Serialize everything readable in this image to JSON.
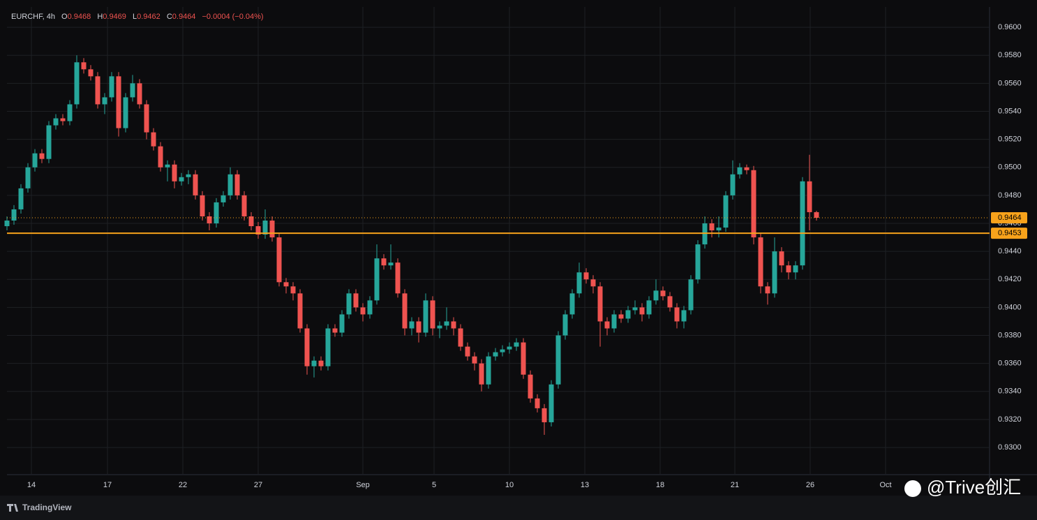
{
  "header": {
    "symbol": "EURCHF, 4h",
    "open_label": "O",
    "open": "0.9468",
    "high_label": "H",
    "high": "0.9469",
    "low_label": "L",
    "low": "0.9462",
    "close_label": "C",
    "close": "0.9464",
    "change": "−0.0004 (−0.04%)"
  },
  "chart_data": {
    "type": "candlestick",
    "up_color": "#26a69a",
    "down_color": "#ef5350",
    "grid": true,
    "open": [
      0.9458,
      0.9462,
      0.947,
      0.9485,
      0.95,
      0.951,
      0.9506,
      0.953,
      0.9535,
      0.9533,
      0.9545,
      0.9575,
      0.957,
      0.9565,
      0.9545,
      0.955,
      0.9565,
      0.9528,
      0.955,
      0.956,
      0.9545,
      0.9525,
      0.9515,
      0.95,
      0.9502,
      0.949,
      0.9493,
      0.9495,
      0.948,
      0.9465,
      0.946,
      0.9475,
      0.948,
      0.9495,
      0.948,
      0.9465,
      0.9458,
      0.9452,
      0.9462,
      0.945,
      0.9418,
      0.9415,
      0.941,
      0.9385,
      0.9358,
      0.9362,
      0.9358,
      0.9385,
      0.9382,
      0.9395,
      0.941,
      0.94,
      0.9395,
      0.9405,
      0.9435,
      0.943,
      0.9432,
      0.941,
      0.9385,
      0.939,
      0.9382,
      0.9405,
      0.9385,
      0.9387,
      0.939,
      0.9385,
      0.9372,
      0.9365,
      0.936,
      0.9345,
      0.9365,
      0.9368,
      0.937,
      0.9372,
      0.9375,
      0.9352,
      0.9335,
      0.9328,
      0.9318,
      0.9345,
      0.938,
      0.9395,
      0.941,
      0.9425,
      0.942,
      0.9415,
      0.939,
      0.9385,
      0.9395,
      0.9392,
      0.9398,
      0.94,
      0.9395,
      0.9405,
      0.9412,
      0.9408,
      0.94,
      0.939,
      0.9398,
      0.942,
      0.9445,
      0.946,
      0.9455,
      0.9457,
      0.948,
      0.9495,
      0.95,
      0.9498,
      0.945,
      0.9415,
      0.941,
      0.944,
      0.943,
      0.9425,
      0.943,
      0.949,
      0.9468
    ],
    "high": [
      0.9465,
      0.9473,
      0.9488,
      0.9503,
      0.9513,
      0.9513,
      0.9533,
      0.9538,
      0.9538,
      0.9548,
      0.958,
      0.9578,
      0.9573,
      0.9568,
      0.9553,
      0.9568,
      0.9568,
      0.9553,
      0.9566,
      0.9563,
      0.9548,
      0.9528,
      0.9518,
      0.9505,
      0.9505,
      0.9496,
      0.9498,
      0.9498,
      0.9483,
      0.9468,
      0.9478,
      0.9483,
      0.95,
      0.9498,
      0.9483,
      0.9468,
      0.9461,
      0.947,
      0.9465,
      0.9453,
      0.9421,
      0.9418,
      0.9413,
      0.9388,
      0.9365,
      0.9365,
      0.9388,
      0.9388,
      0.9398,
      0.9413,
      0.9413,
      0.9403,
      0.9408,
      0.9445,
      0.9438,
      0.9445,
      0.9435,
      0.9413,
      0.9393,
      0.9393,
      0.941,
      0.9408,
      0.939,
      0.94,
      0.9393,
      0.9388,
      0.9375,
      0.9368,
      0.9363,
      0.9368,
      0.9371,
      0.9373,
      0.9375,
      0.9378,
      0.9378,
      0.9355,
      0.9338,
      0.9331,
      0.9348,
      0.9383,
      0.9398,
      0.9413,
      0.9432,
      0.9428,
      0.9423,
      0.9418,
      0.9393,
      0.9398,
      0.9398,
      0.9401,
      0.9405,
      0.9403,
      0.9408,
      0.942,
      0.9415,
      0.9411,
      0.9403,
      0.9401,
      0.9423,
      0.9448,
      0.9465,
      0.9463,
      0.9465,
      0.9483,
      0.9505,
      0.9503,
      0.9502,
      0.9501,
      0.9453,
      0.9418,
      0.945,
      0.9443,
      0.9433,
      0.9433,
      0.9493,
      0.9509,
      0.9469
    ],
    "low": [
      0.9455,
      0.9459,
      0.9467,
      0.9482,
      0.9497,
      0.9503,
      0.9503,
      0.9527,
      0.953,
      0.953,
      0.9542,
      0.9567,
      0.9562,
      0.9542,
      0.9538,
      0.9547,
      0.9522,
      0.9525,
      0.9547,
      0.9542,
      0.952,
      0.9512,
      0.9497,
      0.949,
      0.9485,
      0.9487,
      0.9488,
      0.9477,
      0.9462,
      0.9455,
      0.9457,
      0.9472,
      0.9477,
      0.9477,
      0.9462,
      0.9455,
      0.9449,
      0.9449,
      0.9447,
      0.9415,
      0.941,
      0.9405,
      0.9382,
      0.9352,
      0.935,
      0.9355,
      0.9355,
      0.9379,
      0.9379,
      0.9392,
      0.9397,
      0.939,
      0.9392,
      0.9402,
      0.9427,
      0.9427,
      0.9407,
      0.938,
      0.938,
      0.9375,
      0.9379,
      0.938,
      0.9378,
      0.9384,
      0.938,
      0.9369,
      0.9362,
      0.9355,
      0.934,
      0.9342,
      0.9362,
      0.9365,
      0.9367,
      0.9369,
      0.9349,
      0.9332,
      0.9325,
      0.9309,
      0.9315,
      0.9342,
      0.9377,
      0.9392,
      0.9407,
      0.9417,
      0.941,
      0.9372,
      0.938,
      0.9382,
      0.9389,
      0.9389,
      0.9395,
      0.939,
      0.9392,
      0.9402,
      0.9405,
      0.9397,
      0.9385,
      0.9385,
      0.9395,
      0.9417,
      0.9442,
      0.945,
      0.945,
      0.9454,
      0.9477,
      0.9492,
      0.9495,
      0.9445,
      0.941,
      0.9402,
      0.9407,
      0.9425,
      0.942,
      0.942,
      0.9427,
      0.9455,
      0.9462
    ],
    "close": [
      0.9462,
      0.947,
      0.9485,
      0.95,
      0.951,
      0.9506,
      0.953,
      0.9535,
      0.9533,
      0.9545,
      0.9575,
      0.957,
      0.9565,
      0.9545,
      0.955,
      0.9565,
      0.9528,
      0.955,
      0.956,
      0.9545,
      0.9525,
      0.9515,
      0.95,
      0.9502,
      0.949,
      0.9493,
      0.9495,
      0.948,
      0.9465,
      0.946,
      0.9475,
      0.948,
      0.9495,
      0.948,
      0.9465,
      0.9458,
      0.9452,
      0.9462,
      0.945,
      0.9418,
      0.9415,
      0.941,
      0.9385,
      0.9358,
      0.9362,
      0.9358,
      0.9385,
      0.9382,
      0.9395,
      0.941,
      0.94,
      0.9395,
      0.9405,
      0.9435,
      0.943,
      0.9432,
      0.941,
      0.9385,
      0.939,
      0.9382,
      0.9405,
      0.9385,
      0.9387,
      0.939,
      0.9385,
      0.9372,
      0.9365,
      0.936,
      0.9345,
      0.9365,
      0.9368,
      0.937,
      0.9372,
      0.9375,
      0.9352,
      0.9335,
      0.9328,
      0.9318,
      0.9345,
      0.938,
      0.9395,
      0.941,
      0.9425,
      0.942,
      0.9415,
      0.939,
      0.9385,
      0.9395,
      0.9392,
      0.9398,
      0.94,
      0.9395,
      0.9405,
      0.9412,
      0.9408,
      0.94,
      0.939,
      0.9398,
      0.942,
      0.9445,
      0.946,
      0.9455,
      0.9457,
      0.948,
      0.9495,
      0.95,
      0.9498,
      0.945,
      0.9415,
      0.941,
      0.944,
      0.943,
      0.9425,
      0.943,
      0.949,
      0.9468,
      0.9464
    ],
    "ylim": [
      0.92806,
      0.96145
    ],
    "yticks": [
      {
        "value": 0.93,
        "label": "0.9300"
      },
      {
        "value": 0.932,
        "label": "0.9320"
      },
      {
        "value": 0.934,
        "label": "0.9340"
      },
      {
        "value": 0.936,
        "label": "0.9360"
      },
      {
        "value": 0.938,
        "label": "0.9380"
      },
      {
        "value": 0.94,
        "label": "0.9400"
      },
      {
        "value": 0.942,
        "label": "0.9420"
      },
      {
        "value": 0.944,
        "label": "0.9440"
      },
      {
        "value": 0.946,
        "label": "0.9460"
      },
      {
        "value": 0.948,
        "label": "0.9480"
      },
      {
        "value": 0.95,
        "label": "0.9500"
      },
      {
        "value": 0.952,
        "label": "0.9520"
      },
      {
        "value": 0.954,
        "label": "0.9540"
      },
      {
        "value": 0.956,
        "label": "0.9560"
      },
      {
        "value": 0.958,
        "label": "0.9580"
      },
      {
        "value": 0.96,
        "label": "0.9600"
      }
    ],
    "xlim": [
      0,
      140.8
    ],
    "xticks": [
      {
        "value": 3.5,
        "label": "14"
      },
      {
        "value": 14.4,
        "label": "17"
      },
      {
        "value": 25.2,
        "label": "22"
      },
      {
        "value": 36,
        "label": "27"
      },
      {
        "value": 51,
        "label": "Sep"
      },
      {
        "value": 61.2,
        "label": "5"
      },
      {
        "value": 72,
        "label": "10"
      },
      {
        "value": 82.8,
        "label": "13"
      },
      {
        "value": 93.6,
        "label": "18"
      },
      {
        "value": 104.3,
        "label": "21"
      },
      {
        "value": 115.1,
        "label": "26"
      },
      {
        "value": 125.9,
        "label": "Oct"
      }
    ],
    "last_price": {
      "value": 0.9464,
      "label": "0.9464",
      "color": "#f7a21b"
    },
    "level": {
      "value": 0.9453,
      "label": "0.9453",
      "color": "#f7a21b"
    }
  },
  "footer": {
    "brand": "TradingView",
    "watermark": "@Trive创汇"
  }
}
